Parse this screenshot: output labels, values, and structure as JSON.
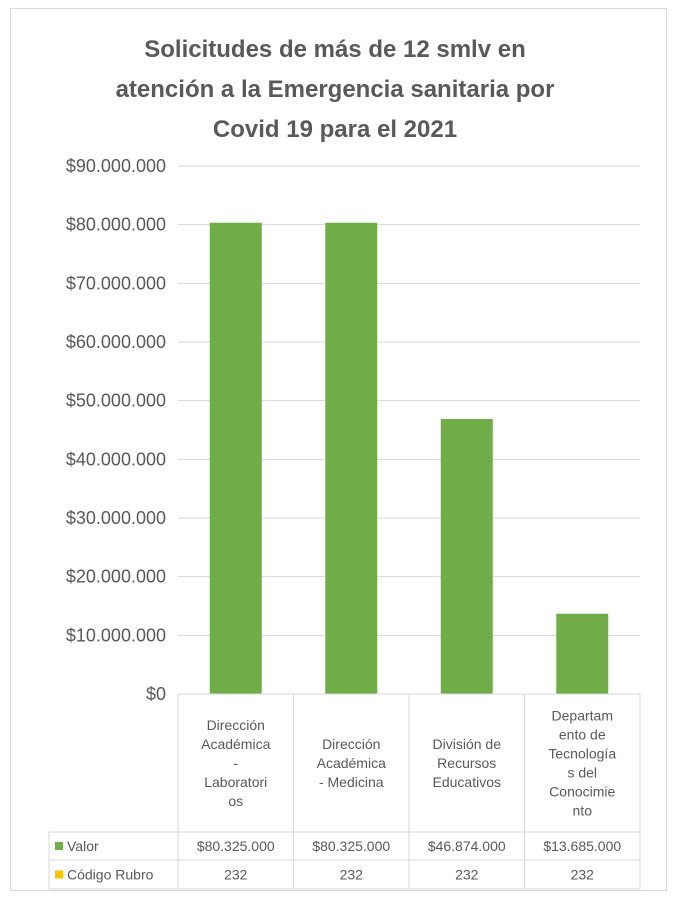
{
  "chart_data": {
    "type": "bar",
    "title": "Solicitudes de más de 12 smlv en atención a la Emergencia sanitaria por Covid 19 para el 2021",
    "title_lines": [
      "Solicitudes de más de 12 smlv en",
      "atención a la Emergencia sanitaria por",
      "Covid 19 para el 2021"
    ],
    "categories": [
      "Dirección Académica - Laboratorios",
      "Dirección Académica - Medicina",
      "División de Recursos Educativos",
      "Departamento de Tecnologías del Conocimiento"
    ],
    "category_lines": [
      [
        "Dirección",
        "Académica",
        "-",
        "Laboratori",
        "os"
      ],
      [
        "Dirección",
        "Académica",
        "- Medicina"
      ],
      [
        "División de",
        "Recursos",
        "Educativos"
      ],
      [
        "Departam",
        "ento de",
        "Tecnología",
        "s del",
        "Conocimie",
        "nto"
      ]
    ],
    "series": [
      {
        "name": "Valor",
        "color": "#70ad47",
        "values": [
          80325000,
          80325000,
          46874000,
          13685000
        ],
        "labels": [
          "$80.325.000",
          "$80.325.000",
          "$46.874.000",
          "$13.685.000"
        ]
      },
      {
        "name": "Código Rubro",
        "color": "#ffc000",
        "values": [
          232,
          232,
          232,
          232
        ],
        "labels": [
          "232",
          "232",
          "232",
          "232"
        ]
      }
    ],
    "ylim": [
      0,
      90000000
    ],
    "yticks": [
      0,
      10000000,
      20000000,
      30000000,
      40000000,
      50000000,
      60000000,
      70000000,
      80000000,
      90000000
    ],
    "ytick_labels": [
      "$0",
      "$10.000.000",
      "$20.000.000",
      "$30.000.000",
      "$40.000.000",
      "$50.000.000",
      "$60.000.000",
      "$70.000.000",
      "$80.000.000",
      "$90.000.000"
    ],
    "grid": true,
    "legend": "data table",
    "xlabel": "",
    "ylabel": ""
  }
}
